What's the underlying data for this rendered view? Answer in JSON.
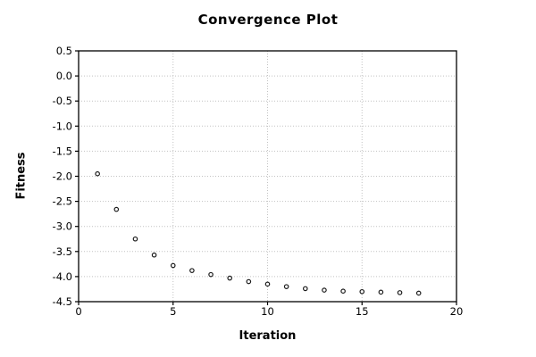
{
  "figure": {
    "background": "#ffffff"
  },
  "style": {
    "border_color": "#000000",
    "grid_color": "#c2c2c2",
    "tick_color": "#000000",
    "text_color": "#000000",
    "marker_stroke": "#1a1a1a",
    "marker_fill": "#ffffff"
  },
  "chart_data": {
    "type": "scatter",
    "title": "Convergence Plot",
    "xlabel": "Iteration",
    "ylabel": "Fitness",
    "xlim": [
      0,
      20
    ],
    "ylim": [
      -4.5,
      0.5
    ],
    "grid": "dotted",
    "legend": "none",
    "marker": "open-circle",
    "xticks": [
      {
        "v": 0,
        "label": "0"
      },
      {
        "v": 5,
        "label": "5"
      },
      {
        "v": 10,
        "label": "10"
      },
      {
        "v": 15,
        "label": "15"
      },
      {
        "v": 20,
        "label": "20"
      }
    ],
    "yticks": [
      {
        "v": 0.5,
        "label": "0.5"
      },
      {
        "v": 0.0,
        "label": "0.0"
      },
      {
        "v": -0.5,
        "label": "-0.5"
      },
      {
        "v": -1.0,
        "label": "-1.0"
      },
      {
        "v": -1.5,
        "label": "-1.5"
      },
      {
        "v": -2.0,
        "label": "-2.0"
      },
      {
        "v": -2.5,
        "label": "-2.5"
      },
      {
        "v": -3.0,
        "label": "-3.0"
      },
      {
        "v": -3.5,
        "label": "-3.5"
      },
      {
        "v": -4.0,
        "label": "-4.0"
      },
      {
        "v": -4.5,
        "label": "-4.5"
      }
    ],
    "series": [
      {
        "name": "fitness",
        "x": [
          1,
          2,
          3,
          4,
          5,
          6,
          7,
          8,
          9,
          10,
          11,
          12,
          13,
          14,
          15,
          16,
          17,
          18
        ],
        "y": [
          -1.95,
          -2.66,
          -3.25,
          -3.57,
          -3.78,
          -3.88,
          -3.96,
          -4.03,
          -4.1,
          -4.15,
          -4.2,
          -4.24,
          -4.27,
          -4.29,
          -4.3,
          -4.31,
          -4.32,
          -4.33
        ]
      }
    ]
  }
}
